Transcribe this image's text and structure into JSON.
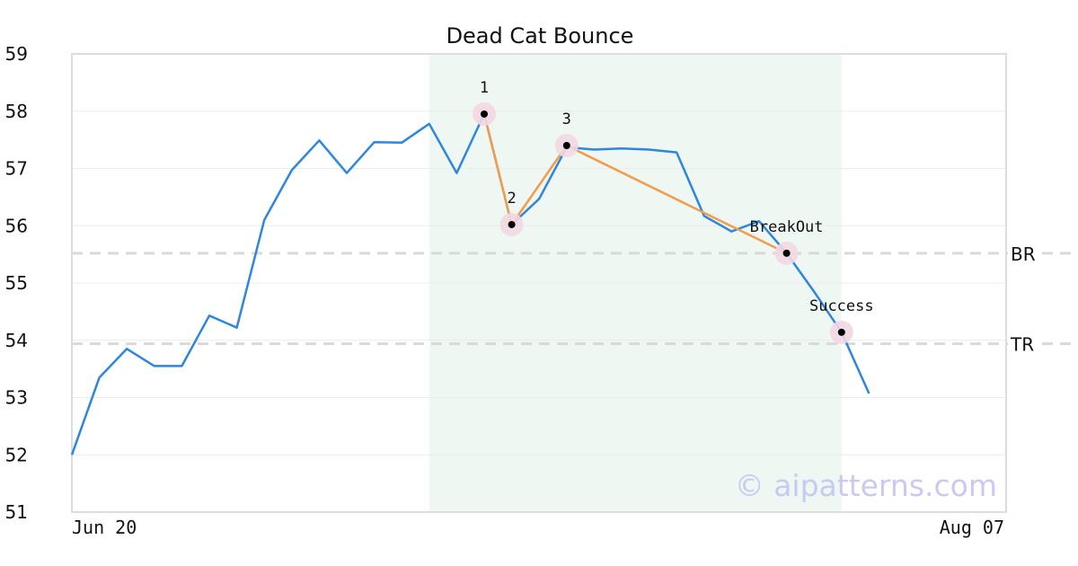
{
  "chart_data": {
    "type": "line",
    "title": "Dead Cat Bounce",
    "xlabel": "",
    "ylabel": "",
    "ylim": [
      51,
      59
    ],
    "yticks": [
      51,
      52,
      53,
      54,
      55,
      56,
      57,
      58,
      59
    ],
    "x_tick_labels": [
      "Jun 20",
      "Aug 07"
    ],
    "grid": true,
    "series": [
      {
        "color": "#2e86de",
        "values": [
          52.0,
          53.35,
          53.85,
          53.55,
          53.55,
          54.43,
          54.22,
          56.1,
          56.97,
          57.49,
          56.92,
          57.46,
          57.45,
          57.78,
          56.92,
          57.95,
          56.02,
          56.47,
          57.37,
          57.33,
          57.35,
          57.33,
          57.28,
          56.17,
          55.9,
          56.08,
          55.52,
          54.85,
          54.14,
          53.07
        ]
      }
    ],
    "pattern_path": {
      "color": "#f39c4b",
      "indices": [
        15,
        16,
        18,
        26
      ]
    },
    "pattern_points": [
      {
        "label": "1",
        "index": 15,
        "value": 57.95
      },
      {
        "label": "2",
        "index": 16,
        "value": 56.02
      },
      {
        "label": "3",
        "index": 18,
        "value": 57.4
      },
      {
        "label": "BreakOut",
        "index": 26,
        "value": 55.52
      },
      {
        "label": "Success",
        "index": 28,
        "value": 54.14
      }
    ],
    "reference_lines": [
      {
        "label": "BR",
        "value": 55.52
      },
      {
        "label": "TR",
        "value": 53.94
      }
    ],
    "highlight_range": {
      "start_index": 13,
      "end_index": 28,
      "color": "#eff7f3"
    },
    "watermark": "© aipatterns.com"
  }
}
